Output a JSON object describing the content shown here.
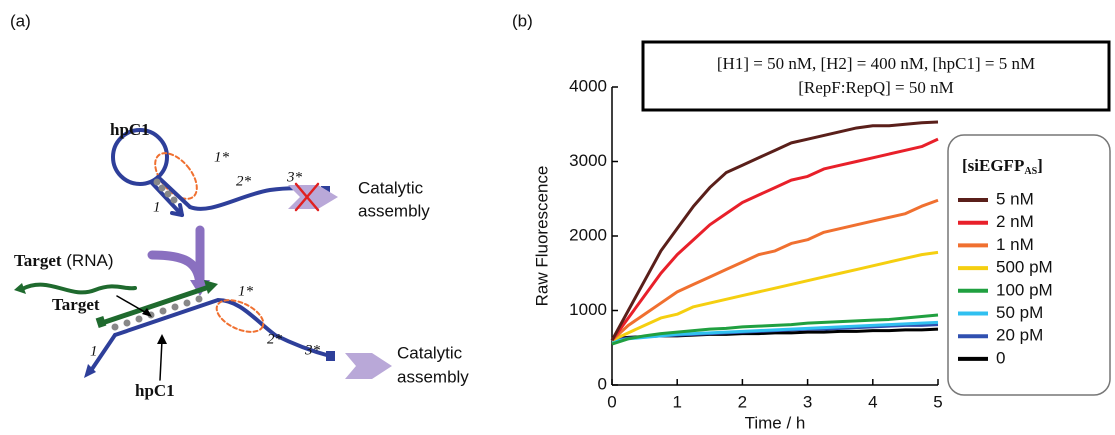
{
  "diagram": {
    "label": "(a)",
    "hairpin": {
      "name": "hpC1",
      "domains": [
        "1*",
        "2*",
        "3*",
        "1"
      ]
    },
    "blocked_output": [
      "Catalytic",
      "assembly"
    ],
    "target_label": [
      "Target",
      "(RNA)"
    ],
    "complex": {
      "target": "Target",
      "hairpin": "hpC1",
      "domains": [
        "1*",
        "2*",
        "3*",
        "1"
      ]
    },
    "output": [
      "Catalytic",
      "assembly"
    ]
  },
  "chart_data": {
    "type": "line",
    "label": "(b)",
    "annotations": [
      "[H1] = 50 nM, [H2] = 400 nM, [hpC1] = 5 nM",
      "[RepF:RepQ] = 50 nM"
    ],
    "x_label": "Time / h",
    "y_label": "Raw Fluorescence",
    "legend_title": [
      "[siEGFP",
      "AS",
      "]"
    ],
    "xlim": [
      0,
      5
    ],
    "xticks": [
      0,
      1,
      2,
      3,
      4,
      5
    ],
    "ylim": [
      0,
      4000
    ],
    "yticks": [
      0,
      1000,
      2000,
      3000,
      4000
    ],
    "x": [
      0,
      0.25,
      0.5,
      0.75,
      1,
      1.25,
      1.5,
      1.75,
      2,
      2.25,
      2.5,
      2.75,
      3,
      3.25,
      3.5,
      3.75,
      4,
      4.25,
      4.5,
      4.75,
      5
    ],
    "series": [
      {
        "name": "5 nM",
        "color": "#5a1f1a",
        "values": [
          600,
          1000,
          1400,
          1800,
          2100,
          2400,
          2650,
          2850,
          2950,
          3050,
          3150,
          3250,
          3300,
          3350,
          3400,
          3450,
          3480,
          3480,
          3500,
          3520,
          3530
        ]
      },
      {
        "name": "2 nM",
        "color": "#e8202a",
        "values": [
          600,
          900,
          1200,
          1500,
          1750,
          1950,
          2150,
          2300,
          2450,
          2550,
          2650,
          2750,
          2800,
          2900,
          2950,
          3000,
          3050,
          3100,
          3150,
          3200,
          3300
        ]
      },
      {
        "name": "1 nM",
        "color": "#f07030",
        "values": [
          600,
          800,
          950,
          1100,
          1250,
          1350,
          1450,
          1550,
          1650,
          1750,
          1800,
          1900,
          1950,
          2050,
          2100,
          2150,
          2200,
          2250,
          2300,
          2400,
          2480
        ]
      },
      {
        "name": "500 pM",
        "color": "#f5cf10",
        "values": [
          600,
          700,
          800,
          900,
          950,
          1050,
          1100,
          1150,
          1200,
          1250,
          1300,
          1350,
          1400,
          1450,
          1500,
          1550,
          1600,
          1650,
          1700,
          1750,
          1780
        ]
      },
      {
        "name": "100 pM",
        "color": "#20a040",
        "values": [
          550,
          620,
          660,
          690,
          710,
          730,
          750,
          760,
          780,
          790,
          800,
          810,
          830,
          840,
          850,
          860,
          870,
          880,
          900,
          920,
          940
        ]
      },
      {
        "name": "50 pM",
        "color": "#30c0f0",
        "values": [
          580,
          620,
          640,
          660,
          680,
          690,
          700,
          710,
          720,
          730,
          740,
          750,
          760,
          770,
          780,
          790,
          800,
          810,
          820,
          830,
          840
        ]
      },
      {
        "name": "20 pM",
        "color": "#3050b0",
        "values": [
          600,
          630,
          650,
          660,
          670,
          680,
          690,
          700,
          710,
          720,
          730,
          740,
          750,
          750,
          760,
          770,
          780,
          790,
          800,
          800,
          810
        ]
      },
      {
        "name": "0",
        "color": "#000000",
        "values": [
          620,
          640,
          650,
          660,
          660,
          670,
          680,
          680,
          690,
          690,
          700,
          700,
          710,
          710,
          720,
          720,
          730,
          730,
          740,
          740,
          750
        ]
      }
    ]
  }
}
